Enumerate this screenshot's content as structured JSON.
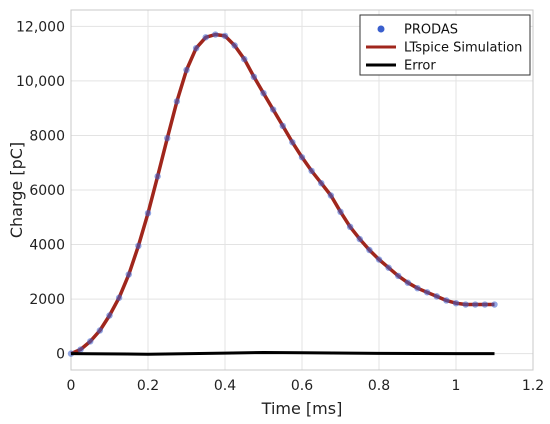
{
  "chart_data": {
    "type": "line",
    "xlabel": "Time [ms]",
    "ylabel": "Charge [pC]",
    "xlim": [
      0,
      1.2
    ],
    "ylim": [
      -600,
      12600
    ],
    "xticks": [
      0,
      0.2,
      0.4,
      0.6,
      0.8,
      1,
      1.2
    ],
    "xtick_labels": [
      "0",
      "0.2",
      "0.4",
      "0.6",
      "0.8",
      "1",
      "1.2"
    ],
    "yticks": [
      0,
      2000,
      4000,
      6000,
      8000,
      10000,
      12000
    ],
    "ytick_labels": [
      "0",
      "2000",
      "4000",
      "6000",
      "8000",
      "10,000",
      "12,000"
    ],
    "grid": true,
    "legend_position": "top-right",
    "series": [
      {
        "name": "PRODAS",
        "style": "markers",
        "color": "#3a5fcd",
        "x": [
          0,
          0.025,
          0.05,
          0.075,
          0.1,
          0.125,
          0.15,
          0.175,
          0.2,
          0.225,
          0.25,
          0.275,
          0.3,
          0.325,
          0.35,
          0.375,
          0.4,
          0.425,
          0.45,
          0.475,
          0.5,
          0.525,
          0.55,
          0.575,
          0.6,
          0.625,
          0.65,
          0.675,
          0.7,
          0.725,
          0.75,
          0.775,
          0.8,
          0.825,
          0.85,
          0.875,
          0.9,
          0.925,
          0.95,
          0.975,
          1.0,
          1.025,
          1.05,
          1.075,
          1.1
        ],
        "y": [
          0,
          150,
          450,
          850,
          1400,
          2050,
          2900,
          3950,
          5150,
          6500,
          7900,
          9250,
          10400,
          11200,
          11600,
          11700,
          11650,
          11300,
          10800,
          10150,
          9550,
          8950,
          8350,
          7750,
          7200,
          6700,
          6250,
          5800,
          5200,
          4650,
          4200,
          3800,
          3450,
          3150,
          2850,
          2600,
          2400,
          2250,
          2100,
          1950,
          1850,
          1800,
          1800,
          1800,
          1800
        ]
      },
      {
        "name": "LTspice Simulation",
        "style": "line",
        "color": "#a0261c",
        "x": [
          0,
          0.025,
          0.05,
          0.075,
          0.1,
          0.125,
          0.15,
          0.175,
          0.2,
          0.225,
          0.25,
          0.275,
          0.3,
          0.325,
          0.35,
          0.375,
          0.4,
          0.425,
          0.45,
          0.475,
          0.5,
          0.525,
          0.55,
          0.575,
          0.6,
          0.625,
          0.65,
          0.675,
          0.7,
          0.725,
          0.75,
          0.775,
          0.8,
          0.825,
          0.85,
          0.875,
          0.9,
          0.925,
          0.95,
          0.975,
          1.0,
          1.025,
          1.05,
          1.075,
          1.1
        ],
        "y": [
          0,
          150,
          450,
          850,
          1400,
          2050,
          2900,
          3950,
          5150,
          6500,
          7900,
          9250,
          10400,
          11200,
          11600,
          11700,
          11650,
          11300,
          10800,
          10150,
          9550,
          8950,
          8350,
          7750,
          7200,
          6700,
          6250,
          5800,
          5200,
          4650,
          4200,
          3800,
          3450,
          3150,
          2850,
          2600,
          2400,
          2250,
          2100,
          1950,
          1850,
          1800,
          1800,
          1800,
          1800
        ]
      },
      {
        "name": "Error",
        "style": "line",
        "color": "#000000",
        "x": [
          0,
          0.2,
          0.4,
          0.5,
          0.6,
          0.8,
          1.0,
          1.1
        ],
        "y": [
          0,
          -20,
          20,
          40,
          30,
          10,
          0,
          0
        ]
      }
    ]
  }
}
